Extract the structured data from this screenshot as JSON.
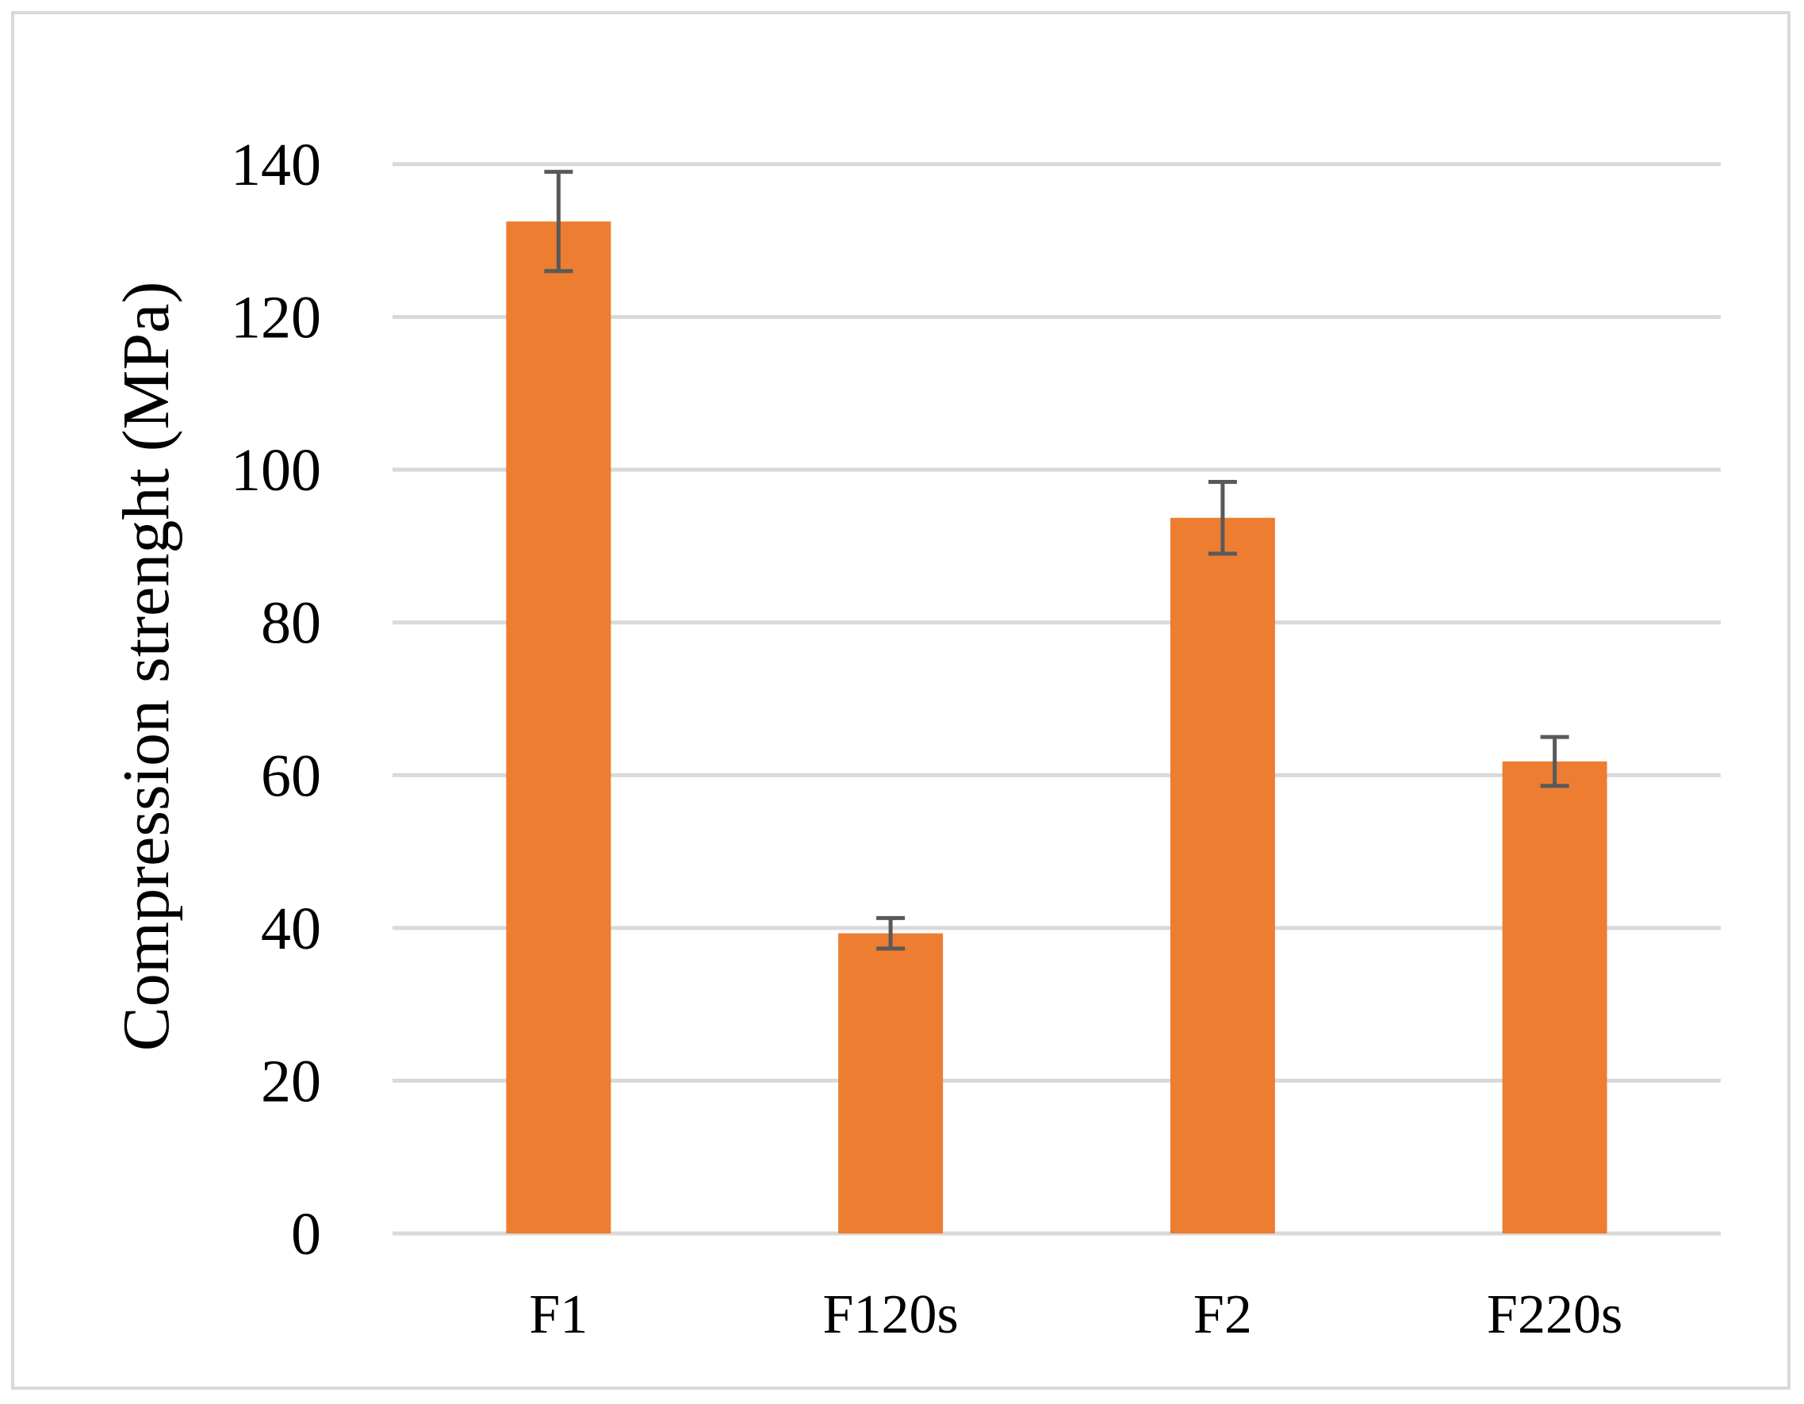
{
  "chart_data": {
    "type": "bar",
    "title": "",
    "xlabel": "",
    "ylabel": "Compression strenght (MPa)",
    "categories": [
      "F1",
      "F120s",
      "F2",
      "F220s"
    ],
    "values": [
      132.5,
      39.3,
      93.7,
      61.8
    ],
    "error_bars": [
      6.5,
      2.0,
      4.7,
      3.2
    ],
    "ylim": [
      0,
      140
    ],
    "yticks": [
      0,
      20,
      40,
      60,
      80,
      100,
      120,
      140
    ],
    "ytick_labels": [
      "0",
      "20",
      "40",
      "60",
      "80",
      "100",
      "120",
      "140"
    ],
    "grid": true,
    "legend": "none"
  },
  "colors": {
    "bar": "#ED7D31",
    "grid": "#D9D9D9",
    "error_bar": "#595959",
    "frame": "#D9D9D9"
  }
}
